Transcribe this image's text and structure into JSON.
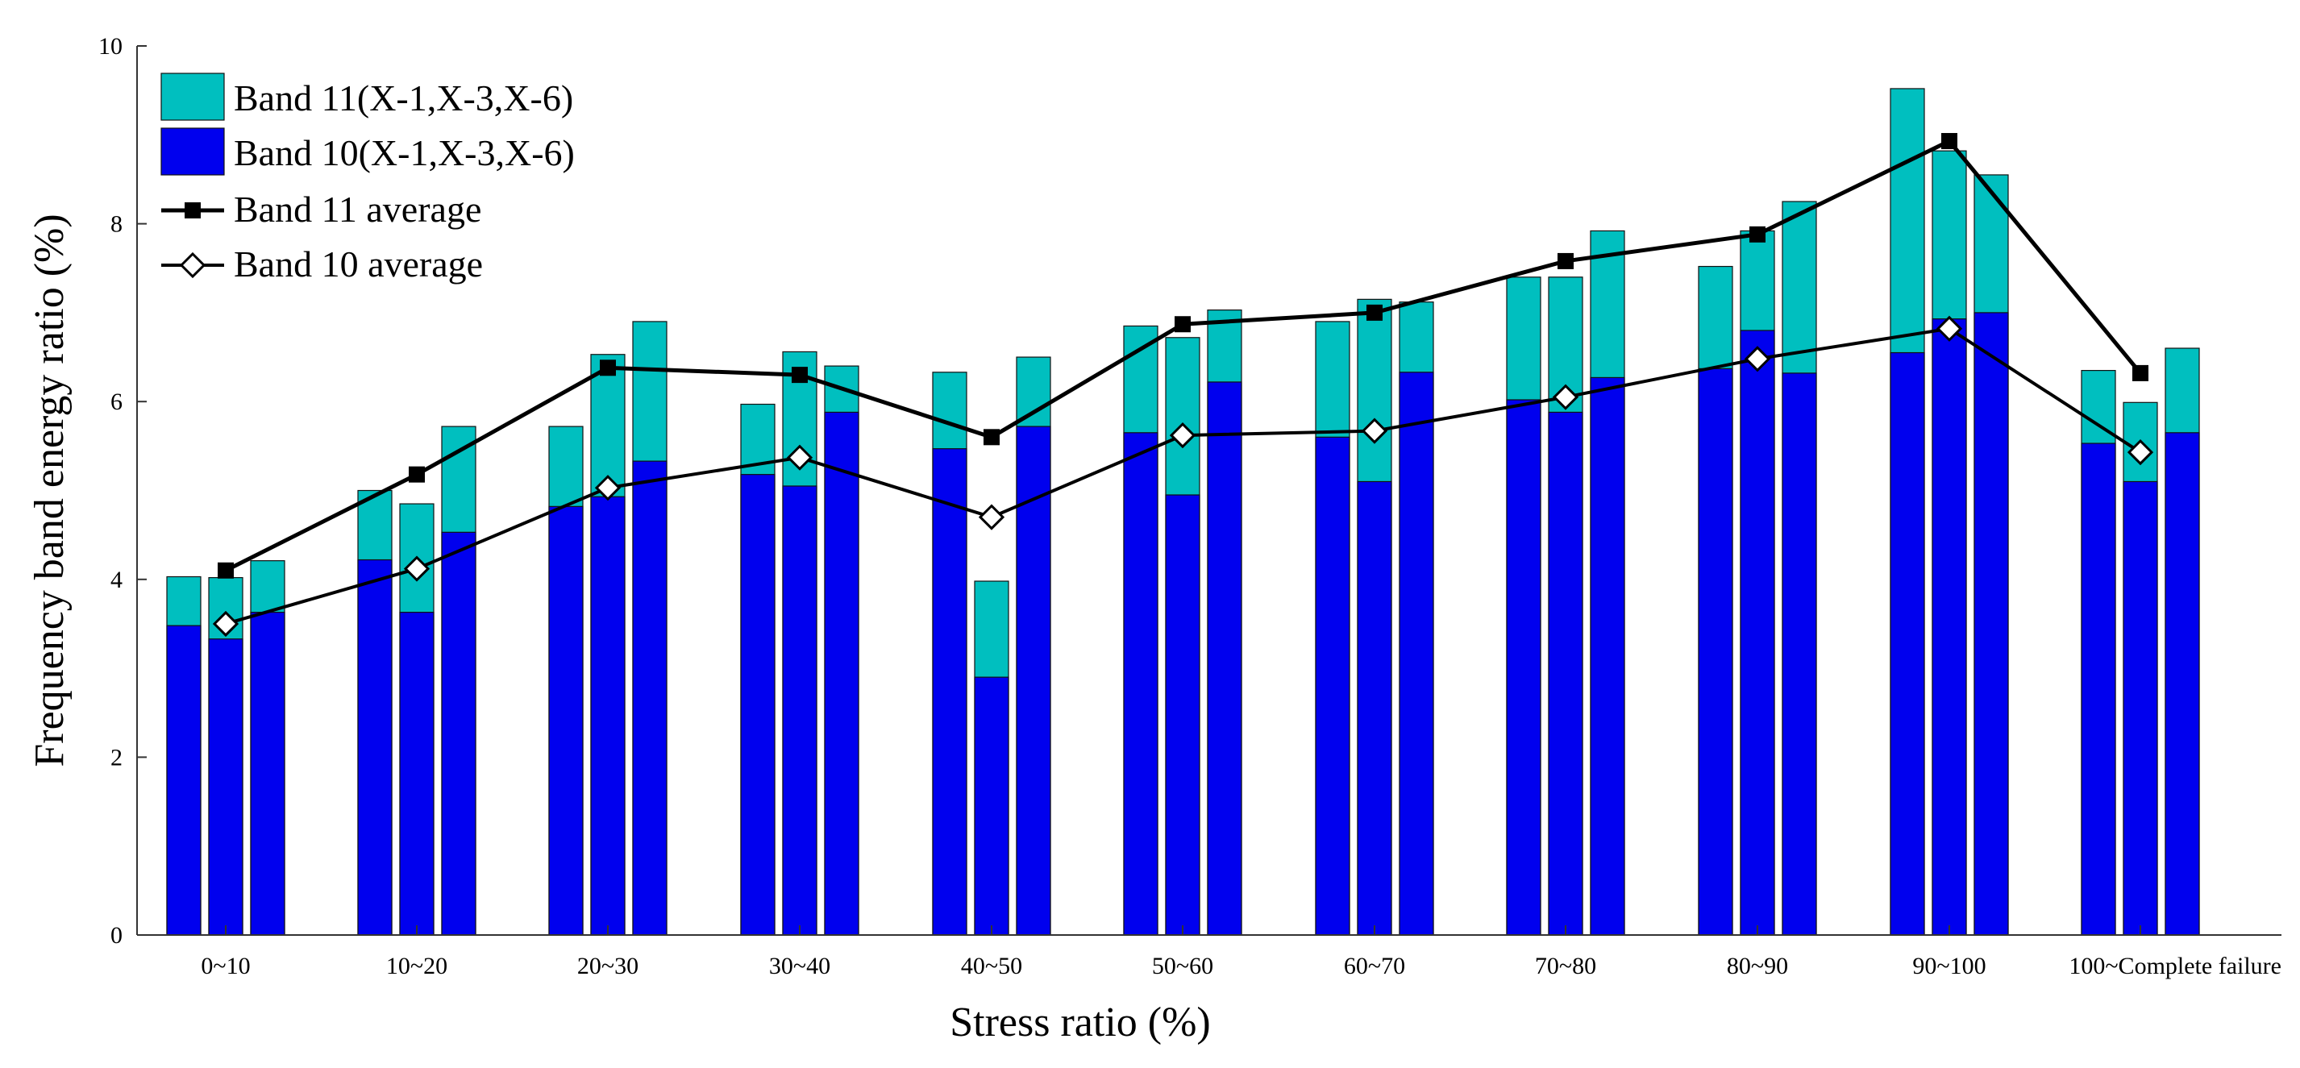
{
  "chart_data": {
    "type": "bar",
    "title": "",
    "xlabel": "Stress ratio (%)",
    "ylabel": "Frequency band energy ratio (%)",
    "ylim": [
      0,
      10
    ],
    "yticks": [
      "0",
      "2",
      "4",
      "6",
      "8",
      "10"
    ],
    "grid": false,
    "legend_position": "top-left",
    "categories": [
      "0~10",
      "10~20",
      "20~30",
      "30~40",
      "40~50",
      "50~60",
      "60~70",
      "70~80",
      "80~90",
      "90~100",
      "100~Complete failure"
    ],
    "samples": [
      "X-1",
      "X-3",
      "X-6"
    ],
    "series": [
      {
        "name": "Band 11(X-1,X-3,X-6)",
        "kind": "bar",
        "color": "#00BFBF",
        "values": [
          [
            4.03,
            4.02,
            4.21
          ],
          [
            5.0,
            4.85,
            5.72
          ],
          [
            5.72,
            6.53,
            6.9
          ],
          [
            5.97,
            6.56,
            6.4
          ],
          [
            6.33,
            3.98,
            6.5
          ],
          [
            6.85,
            6.72,
            7.03
          ],
          [
            6.9,
            7.15,
            7.12
          ],
          [
            7.4,
            7.4,
            7.92
          ],
          [
            7.52,
            7.92,
            8.25
          ],
          [
            9.52,
            8.82,
            8.55
          ],
          [
            6.35,
            5.99,
            6.6
          ]
        ]
      },
      {
        "name": "Band 10(X-1,X-3,X-6)",
        "kind": "bar",
        "color": "#0000EE",
        "values": [
          [
            3.48,
            3.33,
            3.63
          ],
          [
            4.22,
            3.63,
            4.53
          ],
          [
            4.82,
            4.93,
            5.33
          ],
          [
            5.18,
            5.05,
            5.88
          ],
          [
            5.47,
            2.9,
            5.72
          ],
          [
            5.65,
            4.95,
            6.22
          ],
          [
            5.6,
            5.1,
            6.33
          ],
          [
            6.02,
            5.88,
            6.27
          ],
          [
            6.37,
            6.8,
            6.32
          ],
          [
            6.55,
            6.93,
            7.0
          ],
          [
            5.53,
            5.1,
            5.65
          ]
        ]
      },
      {
        "name": "Band 11 average",
        "kind": "line",
        "marker": "square",
        "color": "#000000",
        "values": [
          4.1,
          5.18,
          6.38,
          6.3,
          5.6,
          6.87,
          7.0,
          7.58,
          7.88,
          8.93,
          6.32
        ]
      },
      {
        "name": "Band 10 average",
        "kind": "line",
        "marker": "diamond",
        "color": "#000000",
        "values": [
          3.5,
          4.12,
          5.03,
          5.37,
          4.7,
          5.62,
          5.67,
          6.05,
          6.48,
          6.82,
          5.43
        ]
      }
    ]
  }
}
